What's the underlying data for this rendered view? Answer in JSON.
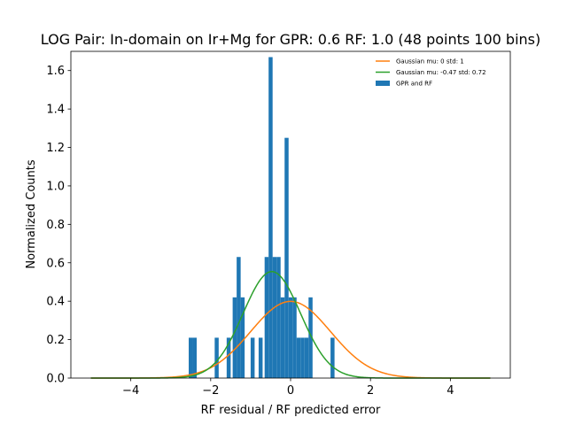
{
  "chart_data": {
    "type": "bar",
    "title": "LOG Pair: In-domain on Ir+Mg for GPR: 0.6 RF: 1.0 (48 points 100 bins)",
    "xlabel": "RF residual / RF predicted error",
    "ylabel": "Normalized Counts",
    "xlim": [
      -5.5,
      5.5
    ],
    "ylim": [
      0,
      1.7
    ],
    "xticks": [
      -4,
      -2,
      0,
      2,
      4
    ],
    "yticks": [
      0.0,
      0.2,
      0.4,
      0.6,
      0.8,
      1.0,
      1.2,
      1.4,
      1.6
    ],
    "xtick_labels": [
      "−4",
      "−2",
      "0",
      "2",
      "4"
    ],
    "ytick_labels": [
      "0.0",
      "0.2",
      "0.4",
      "0.6",
      "0.8",
      "1.0",
      "1.2",
      "1.4",
      "1.6"
    ],
    "grid": false,
    "legend_position": "top-right",
    "histogram": {
      "name": "GPR and RF",
      "color": "#1f77b4",
      "bin_width": 0.1,
      "bins": [
        {
          "x": -2.5,
          "y": 0.21
        },
        {
          "x": -2.4,
          "y": 0.21
        },
        {
          "x": -1.85,
          "y": 0.21
        },
        {
          "x": -1.55,
          "y": 0.21
        },
        {
          "x": -1.4,
          "y": 0.42
        },
        {
          "x": -1.3,
          "y": 0.63
        },
        {
          "x": -1.2,
          "y": 0.42
        },
        {
          "x": -0.95,
          "y": 0.21
        },
        {
          "x": -0.75,
          "y": 0.21
        },
        {
          "x": -0.6,
          "y": 0.63
        },
        {
          "x": -0.5,
          "y": 1.67
        },
        {
          "x": -0.4,
          "y": 0.63
        },
        {
          "x": -0.3,
          "y": 0.63
        },
        {
          "x": -0.2,
          "y": 0.42
        },
        {
          "x": -0.1,
          "y": 1.25
        },
        {
          "x": 0.0,
          "y": 0.42
        },
        {
          "x": 0.1,
          "y": 0.42
        },
        {
          "x": 0.2,
          "y": 0.21
        },
        {
          "x": 0.3,
          "y": 0.21
        },
        {
          "x": 0.4,
          "y": 0.21
        },
        {
          "x": 0.5,
          "y": 0.42
        },
        {
          "x": 1.05,
          "y": 0.21
        }
      ]
    },
    "series": [
      {
        "name": "Gaussian mu: 0 std: 1",
        "type": "line",
        "color": "#ff7f0e",
        "mu": 0,
        "std": 1,
        "x_range": [
          -5,
          5
        ]
      },
      {
        "name": "Gaussian mu: -0.47 std: 0.72",
        "type": "line",
        "color": "#2ca02c",
        "mu": -0.47,
        "std": 0.72,
        "x_range": [
          -5,
          5
        ]
      }
    ]
  }
}
